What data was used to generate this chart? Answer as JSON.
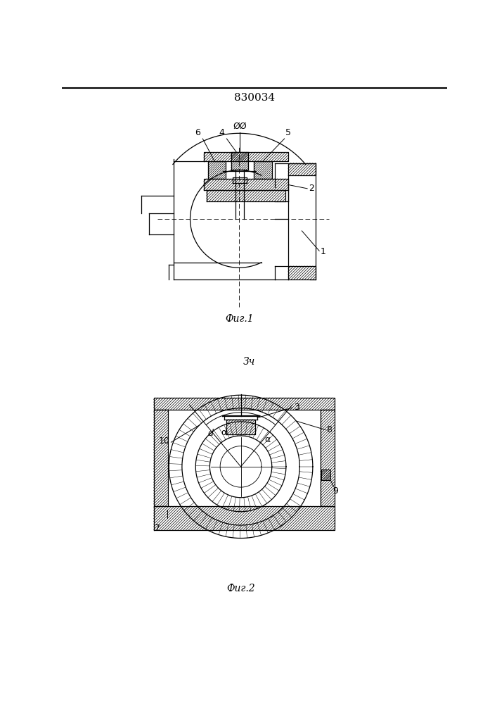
{
  "patent_number": "830034",
  "fig1_caption": "Фиг.1",
  "fig2_caption": "Фиг.2",
  "fig2_section_label": "Зч",
  "background_color": "#ffffff",
  "line_color": "#000000"
}
